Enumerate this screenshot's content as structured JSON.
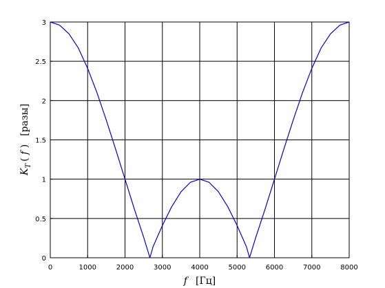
{
  "chart_data": {
    "type": "line",
    "title": "",
    "xlabel": {
      "var": "f",
      "unit": "[Гц]"
    },
    "ylabel": {
      "var": "K",
      "sub": "T",
      "open": "( ",
      "arg": "f",
      "close": " )",
      "unit": "[разы]"
    },
    "xlim": [
      0,
      8000
    ],
    "ylim": [
      0,
      3
    ],
    "x_ticks": [
      0,
      1000,
      2000,
      3000,
      4000,
      5000,
      6000,
      7000,
      8000
    ],
    "y_ticks": [
      0,
      0.5,
      1,
      1.5,
      2,
      2.5,
      3
    ],
    "x_tick_labels": [
      "0",
      "1000",
      "2000",
      "3000",
      "4000",
      "5000",
      "6000",
      "7000",
      "8000"
    ],
    "y_tick_labels": [
      "0",
      "0.5",
      "1",
      "1.5",
      "2",
      "2.5",
      "3"
    ],
    "grid": true,
    "series": [
      {
        "name": "",
        "color": "#0000cc",
        "x": [
          0,
          250,
          500,
          750,
          1000,
          1250,
          1500,
          1750,
          2000,
          2250,
          2500,
          2667,
          2750,
          3000,
          3250,
          3500,
          3750,
          4000,
          4250,
          4500,
          4750,
          5000,
          5250,
          5333,
          5500,
          5750,
          6000,
          6250,
          6500,
          6750,
          7000,
          7250,
          7500,
          7750,
          8000
        ],
        "y": [
          3.0,
          2.96,
          2.85,
          2.67,
          2.41,
          2.1,
          1.75,
          1.38,
          1.0,
          0.62,
          0.26,
          0.0,
          0.14,
          0.41,
          0.65,
          0.84,
          0.96,
          1.0,
          0.96,
          0.84,
          0.65,
          0.41,
          0.14,
          0.0,
          0.26,
          0.62,
          1.0,
          1.38,
          1.75,
          2.1,
          2.41,
          2.67,
          2.85,
          2.96,
          3.0
        ]
      }
    ]
  }
}
